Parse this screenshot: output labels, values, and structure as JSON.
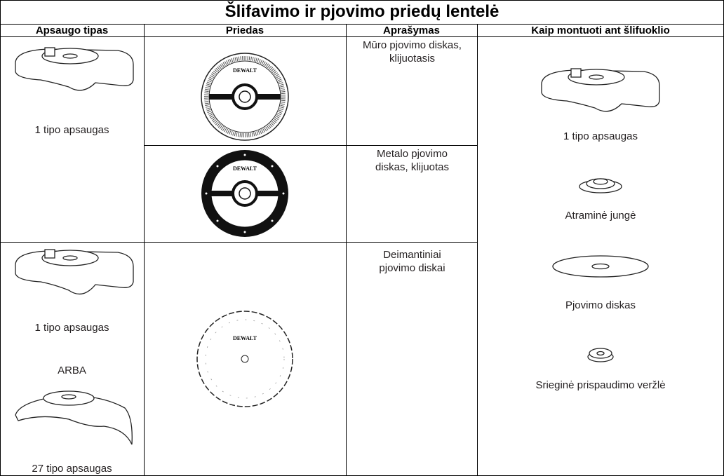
{
  "title": "Šlifavimo ir pjovimo priedų lentelė",
  "table": {
    "headers": [
      "Apsaugo tipas",
      "Priedas",
      "Aprašymas",
      "Kaip montuoti ant šlifuoklio"
    ],
    "guard_cells": [
      {
        "labels": [
          "1 tipo apsaugas"
        ]
      },
      {
        "labels": [
          "1 tipo apsaugas",
          "ARBA",
          "27 tipo apsaugas"
        ]
      }
    ],
    "brand": "DEWALT",
    "descriptions": [
      "Mūro pjovimo diskas, klijuotasis",
      "Metalo pjovimo diskas, klijuotas",
      "Deimantiniai pjovimo diskai"
    ],
    "mounting": [
      "1 tipo apsaugas",
      "Atraminė jungė",
      "Pjovimo diskas",
      "Srieginė prispaudimo veržlė"
    ]
  }
}
